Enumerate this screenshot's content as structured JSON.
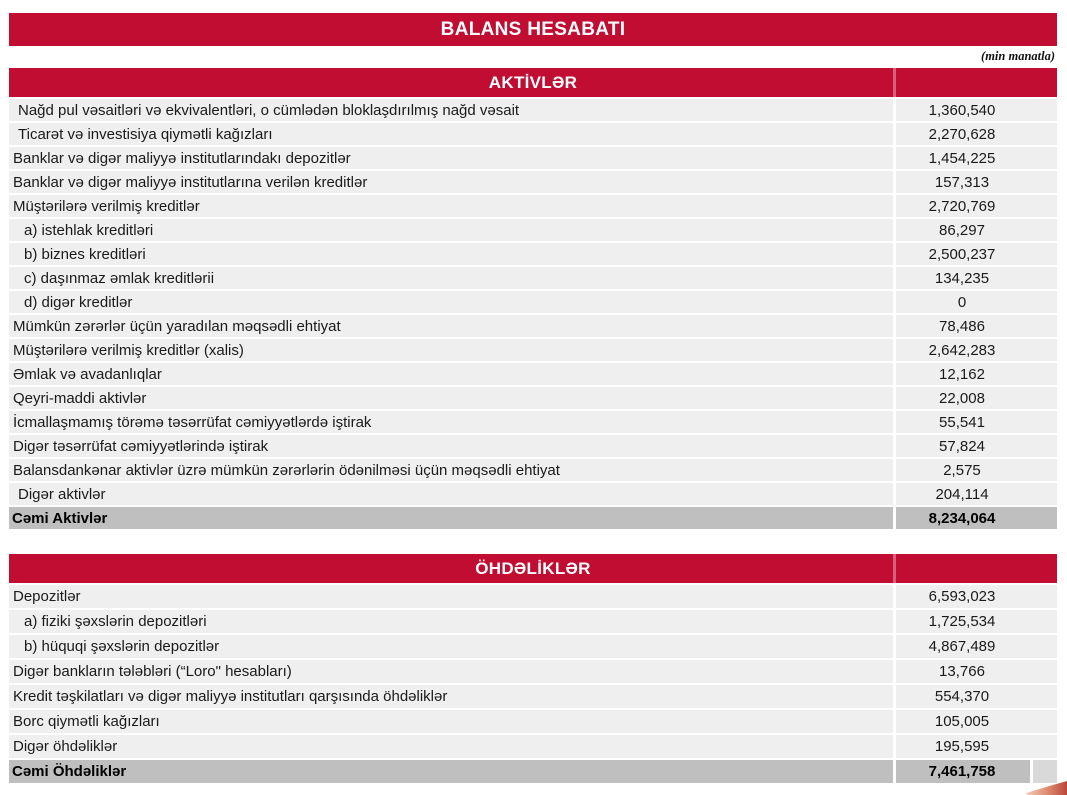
{
  "page": {
    "title": "BALANS HESABATI",
    "unit_note": "(min manatla)"
  },
  "colors": {
    "accent_red": "#C20D33",
    "row_bg": "#EFEFEF",
    "total_row_bg": "#BFBFBF",
    "total_stub_bg": "#D9D9D9"
  },
  "sections": [
    {
      "header": "AKTİVLƏR",
      "rows": [
        {
          "label": "Nağd pul vəsaitləri və ekvivalentləri, o cümlədən bloklaşdırılmış nağd vəsait",
          "value": "1,360,540",
          "indent": 1
        },
        {
          "label": "Ticarət və investisiya qiymətli kağızları",
          "value": "2,270,628",
          "indent": 1
        },
        {
          "label": "Banklar və digər maliyyə institutlarındakı depozitlər",
          "value": "1,454,225",
          "indent": 0
        },
        {
          "label": "Banklar və digər maliyyə institutlarına verilən kreditlər",
          "value": "157,313",
          "indent": 0
        },
        {
          "label": "Müştərilərə verilmiş kreditlər",
          "value": "2,720,769",
          "indent": 0
        },
        {
          "label": "a) istehlak kreditləri",
          "value": "86,297",
          "indent": 2
        },
        {
          "label": "b) biznes kreditləri",
          "value": "2,500,237",
          "indent": 2
        },
        {
          "label": "c) daşınmaz əmlak kreditlərii",
          "value": "134,235",
          "indent": 2
        },
        {
          "label": "d) digər kreditlər",
          "value": "0",
          "indent": 2
        },
        {
          "label": "Mümkün zərərlər üçün yaradılan məqsədli ehtiyat",
          "value": "78,486",
          "indent": 0
        },
        {
          "label": "Müştərilərə verilmiş kreditlər (xalis)",
          "value": "2,642,283",
          "indent": 0
        },
        {
          "label": "Əmlak və avadanlıqlar",
          "value": "12,162",
          "indent": 0
        },
        {
          "label": "Qeyri-maddi aktivlər",
          "value": "22,008",
          "indent": 0
        },
        {
          "label": "İcmallaşmamış törəmə təsərrüfat cəmiyyətlərdə iştirak",
          "value": "55,541",
          "indent": 0
        },
        {
          "label": "Digər təsərrüfat cəmiyyətlərində iştirak",
          "value": "57,824",
          "indent": 0
        },
        {
          "label": "Balansdankənar aktivlər üzrə mümkün zərərlərin ödənilməsi üçün məqsədli ehtiyat",
          "value": "2,575",
          "indent": 0
        },
        {
          "label": "Digər aktivlər",
          "value": "204,114",
          "indent": 1
        },
        {
          "label": "Cəmi Aktivlər",
          "value": "8,234,064",
          "indent": 0,
          "total": true
        }
      ]
    },
    {
      "header": "ÖHDƏLİKLƏR",
      "rows": [
        {
          "label": "Depozitlər",
          "value": "6,593,023",
          "indent": 0
        },
        {
          "label": "a) fiziki şəxslərin depozitləri",
          "value": "1,725,534",
          "indent": 2
        },
        {
          "label": "b) hüquqi şəxslərin depozitlər",
          "value": "4,867,489",
          "indent": 2
        },
        {
          "label": "Digər bankların tələbləri (“Loro\" hesabları)",
          "value": "13,766",
          "indent": 0
        },
        {
          "label": "Kredit təşkilatları və digər maliyyə institutları qarşısında öhdəliklər",
          "value": "554,370",
          "indent": 0
        },
        {
          "label": "Borc qiymətli kağızları",
          "value": "105,005",
          "indent": 0
        },
        {
          "label": "Digər öhdəliklər",
          "value": "195,595",
          "indent": 0
        },
        {
          "label": "Cəmi Öhdəliklər",
          "value": "7,461,758",
          "indent": 0,
          "total": true
        }
      ]
    }
  ]
}
